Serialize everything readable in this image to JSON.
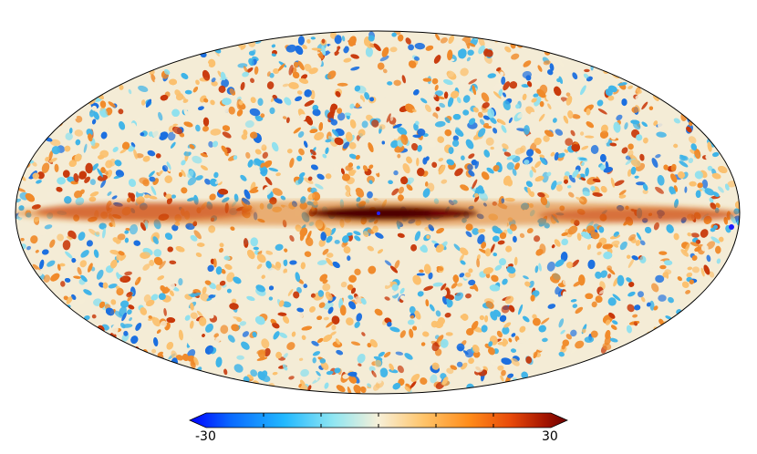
{
  "colorbar": {
    "min_label": "-30",
    "max_label": "30",
    "min_value": -30,
    "max_value": 30,
    "colors": [
      "#0000ff",
      "#0a6bff",
      "#22b8ff",
      "#8fe6f2",
      "#f7f0d8",
      "#ffc46a",
      "#ff8c1a",
      "#e84a0a",
      "#a51500",
      "#6b0000"
    ]
  },
  "map": {
    "projection": "mollweide",
    "palette": {
      "deep_blue": "#1b6fe0",
      "light_blue": "#3fb4e8",
      "cyan": "#8fe0ee",
      "cream": "#f4ecd6",
      "light_orange": "#fbc06e",
      "orange": "#f08a2a",
      "red": "#c8380a",
      "dark_red": "#6b0000"
    }
  }
}
